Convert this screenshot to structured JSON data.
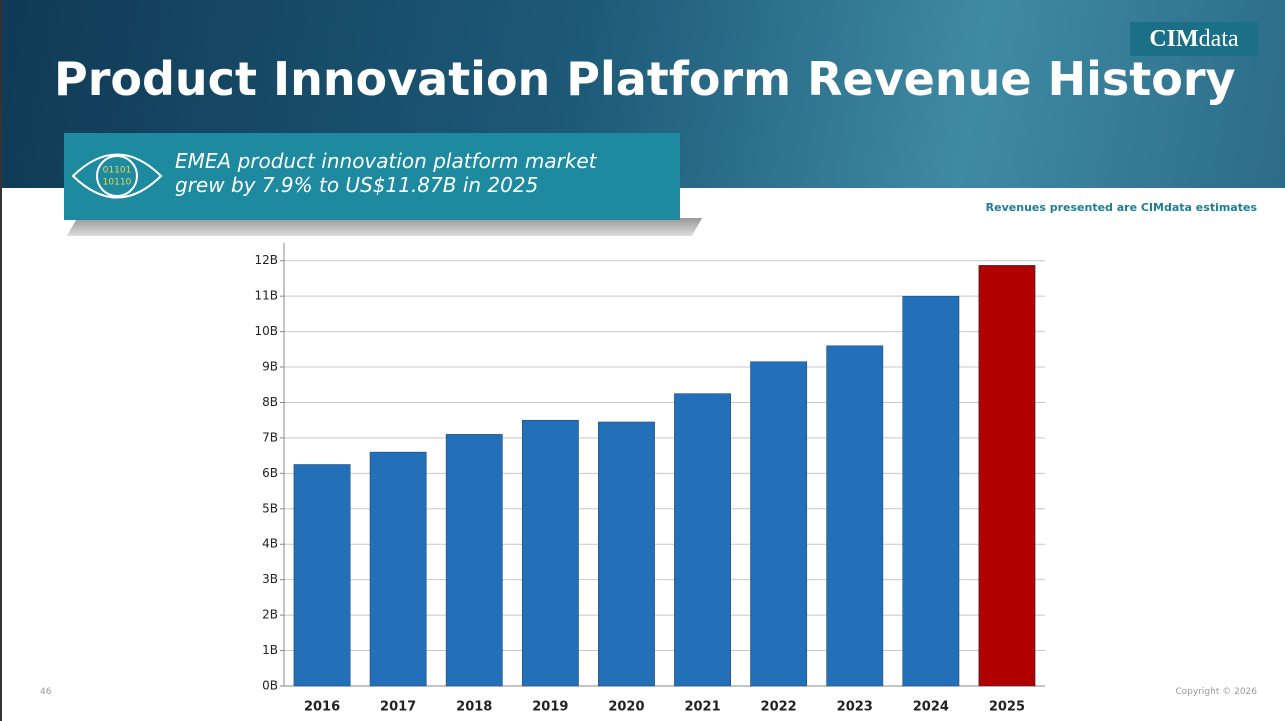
{
  "header": {
    "title": "Product Innovation Platform Revenue History",
    "logo": {
      "bold": "CIM",
      "light": "data"
    }
  },
  "callout": {
    "icon_text": [
      "01101",
      "10110"
    ],
    "lines": [
      "EMEA product innovation platform market",
      "grew by 7.9% to US$11.87B in 2025"
    ]
  },
  "note": "Revenues presented are CIMdata estimates",
  "footer": {
    "page": "46",
    "copyright": "Copyright © 2026"
  },
  "chart_data": {
    "type": "bar",
    "categories": [
      "2016",
      "2017",
      "2018",
      "2019",
      "2020",
      "2021",
      "2022",
      "2023",
      "2024",
      "2025"
    ],
    "values": [
      6.25,
      6.6,
      7.1,
      7.5,
      7.45,
      8.25,
      9.15,
      9.6,
      11.0,
      11.87
    ],
    "colors": [
      "#2470b8",
      "#2470b8",
      "#2470b8",
      "#2470b8",
      "#2470b8",
      "#2470b8",
      "#2470b8",
      "#2470b8",
      "#2470b8",
      "#b00000"
    ],
    "ylim": [
      0,
      12.5
    ],
    "yticks": [
      {
        "value": 0,
        "label": "0B"
      },
      {
        "value": 1,
        "label": "1B"
      },
      {
        "value": 2,
        "label": "2B"
      },
      {
        "value": 3,
        "label": "3B"
      },
      {
        "value": 4,
        "label": "4B"
      },
      {
        "value": 5,
        "label": "5B"
      },
      {
        "value": 6,
        "label": "6B"
      },
      {
        "value": 7,
        "label": "7B"
      },
      {
        "value": 8,
        "label": "8B"
      },
      {
        "value": 9,
        "label": "9B"
      },
      {
        "value": 10,
        "label": "10B"
      },
      {
        "value": 11,
        "label": "11B"
      },
      {
        "value": 12,
        "label": "12B"
      }
    ],
    "grid": true
  }
}
